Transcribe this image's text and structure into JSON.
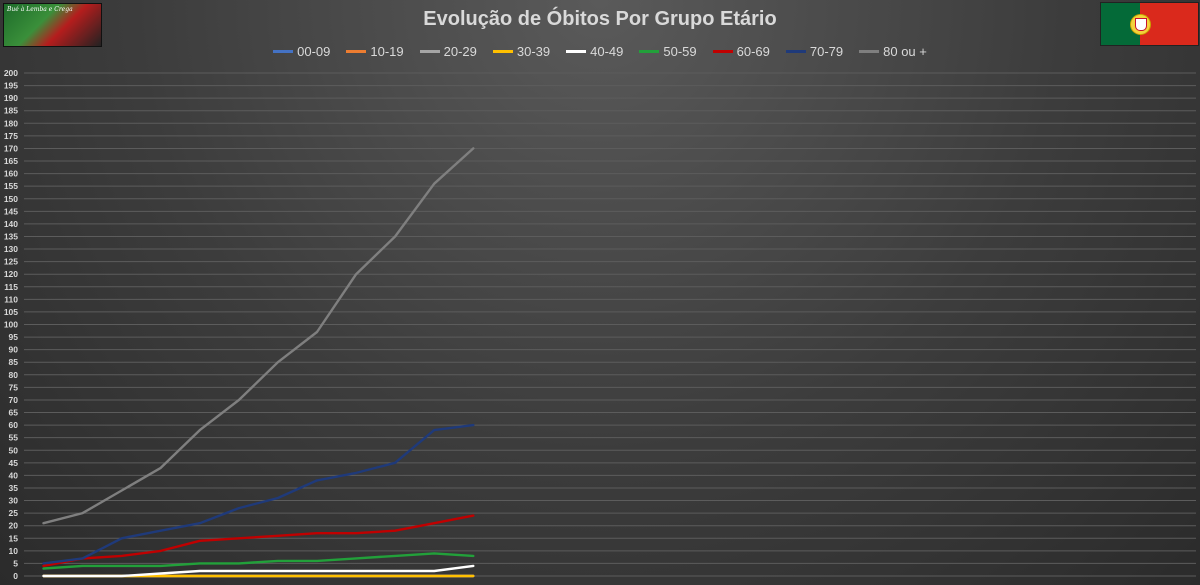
{
  "logo": {
    "text": "Bué à Lemba e Crega",
    "icon": "football-logo-icon"
  },
  "flag": {
    "icon": "portugal-flag-icon",
    "colors": {
      "green": "#046a38",
      "red": "#da291c",
      "emblem": "#f3d23b"
    }
  },
  "chart_data": {
    "type": "line",
    "title": "Evolução de Óbitos Por Grupo Etário",
    "xlabel": "",
    "ylabel": "",
    "ylim": [
      0,
      200
    ],
    "y_ticks": [
      0,
      5,
      10,
      15,
      20,
      25,
      30,
      35,
      40,
      45,
      50,
      55,
      60,
      65,
      70,
      75,
      80,
      85,
      90,
      95,
      100,
      105,
      110,
      115,
      120,
      125,
      130,
      135,
      140,
      145,
      150,
      155,
      160,
      165,
      170,
      175,
      180,
      185,
      190,
      195,
      200
    ],
    "x_points": 12,
    "x_total_slots": 30,
    "grid": "horizontal",
    "legend_position": "top",
    "series": [
      {
        "name": "00-09",
        "color": "#4472c4",
        "values": [
          0,
          0,
          0,
          0,
          0,
          0,
          0,
          0,
          0,
          0,
          0,
          0
        ]
      },
      {
        "name": "10-19",
        "color": "#ed7d31",
        "values": [
          0,
          0,
          0,
          0,
          0,
          0,
          0,
          0,
          0,
          0,
          0,
          0
        ]
      },
      {
        "name": "20-29",
        "color": "#a5a5a5",
        "values": [
          0,
          0,
          0,
          0,
          0,
          0,
          0,
          0,
          0,
          0,
          0,
          0
        ]
      },
      {
        "name": "30-39",
        "color": "#ffc000",
        "values": [
          0,
          0,
          0,
          0,
          0,
          0,
          0,
          0,
          0,
          0,
          0,
          0
        ]
      },
      {
        "name": "40-49",
        "color": "#ffffff",
        "values": [
          0,
          0,
          0,
          1,
          2,
          2,
          2,
          2,
          2,
          2,
          2,
          4
        ]
      },
      {
        "name": "50-59",
        "color": "#22a03a",
        "values": [
          3,
          4,
          4,
          4,
          5,
          5,
          6,
          6,
          7,
          8,
          9,
          8
        ]
      },
      {
        "name": "60-69",
        "color": "#c00000",
        "values": [
          4,
          7,
          8,
          10,
          14,
          15,
          16,
          17,
          17,
          18,
          21,
          24
        ]
      },
      {
        "name": "70-79",
        "color": "#1f3a7a",
        "values": [
          5,
          7,
          15,
          18,
          21,
          27,
          31,
          38,
          41,
          45,
          58,
          60
        ]
      },
      {
        "name": "80 ou +",
        "color": "#7f7f7f",
        "values": [
          21,
          25,
          34,
          43,
          58,
          70,
          85,
          97,
          120,
          135,
          156,
          170
        ]
      }
    ]
  }
}
